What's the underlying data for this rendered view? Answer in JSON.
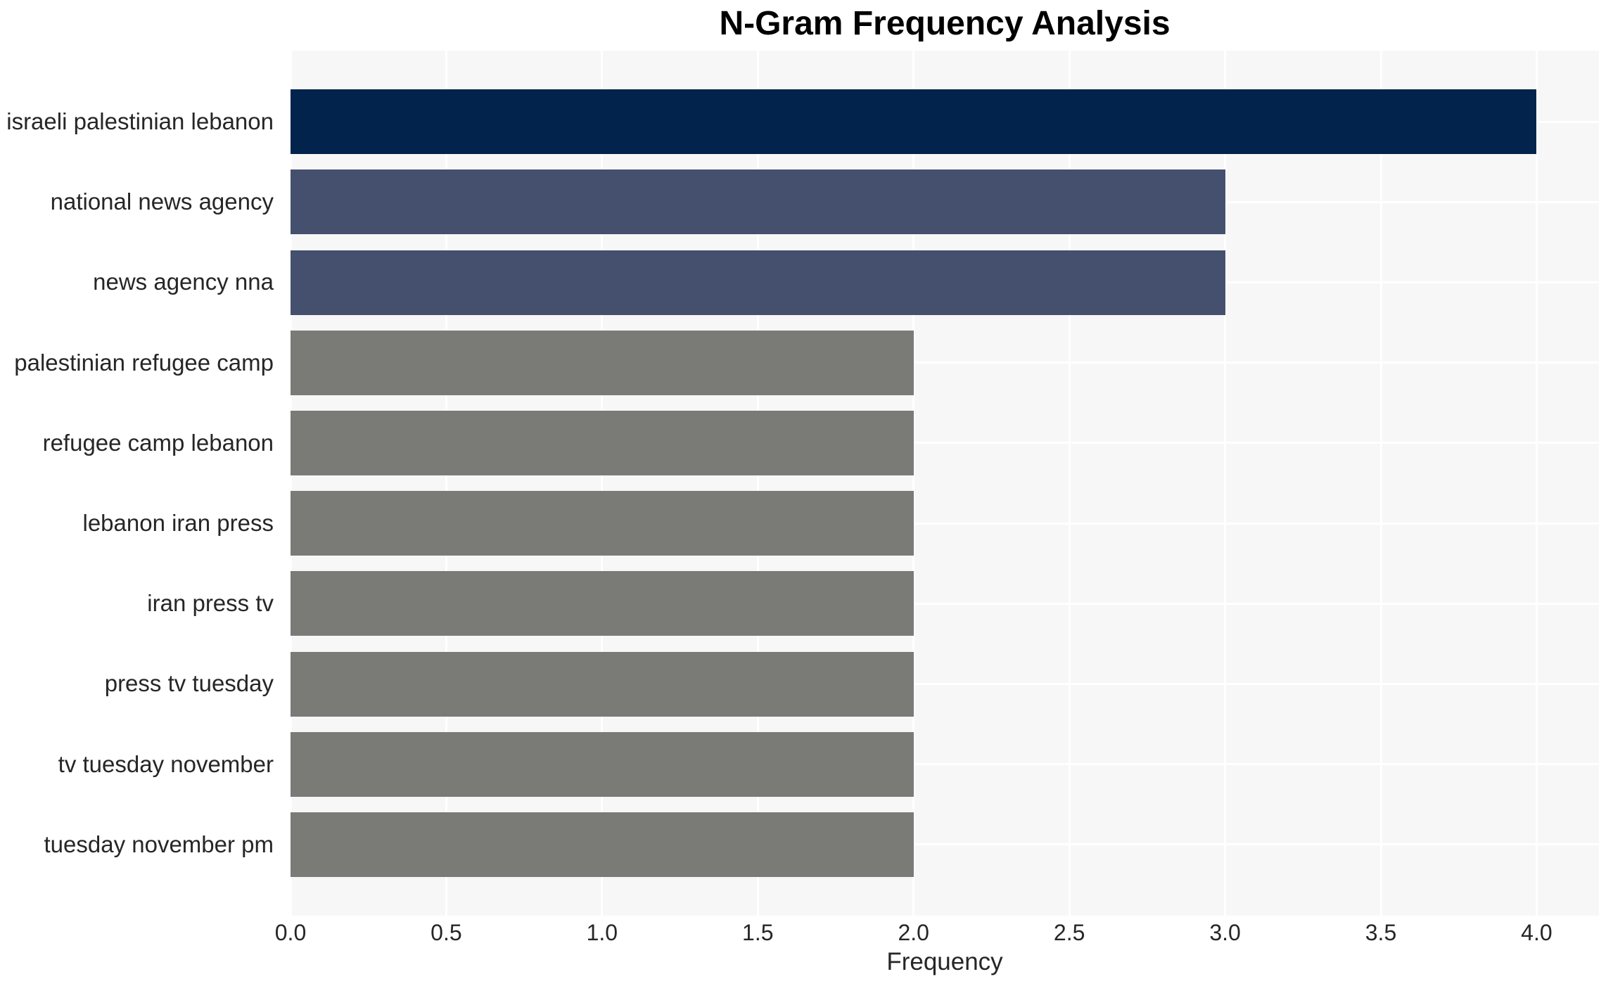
{
  "figure": {
    "background": "#ffffff"
  },
  "chart_data": {
    "type": "bar",
    "orientation": "horizontal",
    "title": "N-Gram Frequency Analysis",
    "xlabel": "Frequency",
    "ylabel": "",
    "categories": [
      "israeli palestinian lebanon",
      "national news agency",
      "news agency nna",
      "palestinian refugee camp",
      "refugee camp lebanon",
      "lebanon iran press",
      "iran press tv",
      "press tv tuesday",
      "tv tuesday november",
      "tuesday november pm"
    ],
    "values": [
      4,
      3,
      3,
      2,
      2,
      2,
      2,
      2,
      2,
      2
    ],
    "bar_colors": [
      "#02234c",
      "#45506e",
      "#45506e",
      "#7a7a77",
      "#7a7a77",
      "#7a7a77",
      "#7a7a77",
      "#7a7a77",
      "#7a7a77",
      "#7a7a77"
    ],
    "xlim": [
      0,
      4.2
    ],
    "xticks": [
      {
        "value": 0.0,
        "label": "0.0"
      },
      {
        "value": 0.5,
        "label": "0.5"
      },
      {
        "value": 1.0,
        "label": "1.0"
      },
      {
        "value": 1.5,
        "label": "1.5"
      },
      {
        "value": 2.0,
        "label": "2.0"
      },
      {
        "value": 2.5,
        "label": "2.5"
      },
      {
        "value": 3.0,
        "label": "3.0"
      },
      {
        "value": 3.5,
        "label": "3.5"
      },
      {
        "value": 4.0,
        "label": "4.0"
      }
    ],
    "grid": true,
    "legend_position": "none",
    "plot_background": "#f7f7f7",
    "grid_color": "#ffffff",
    "text_color": "#262626",
    "title_color": "#000000"
  }
}
